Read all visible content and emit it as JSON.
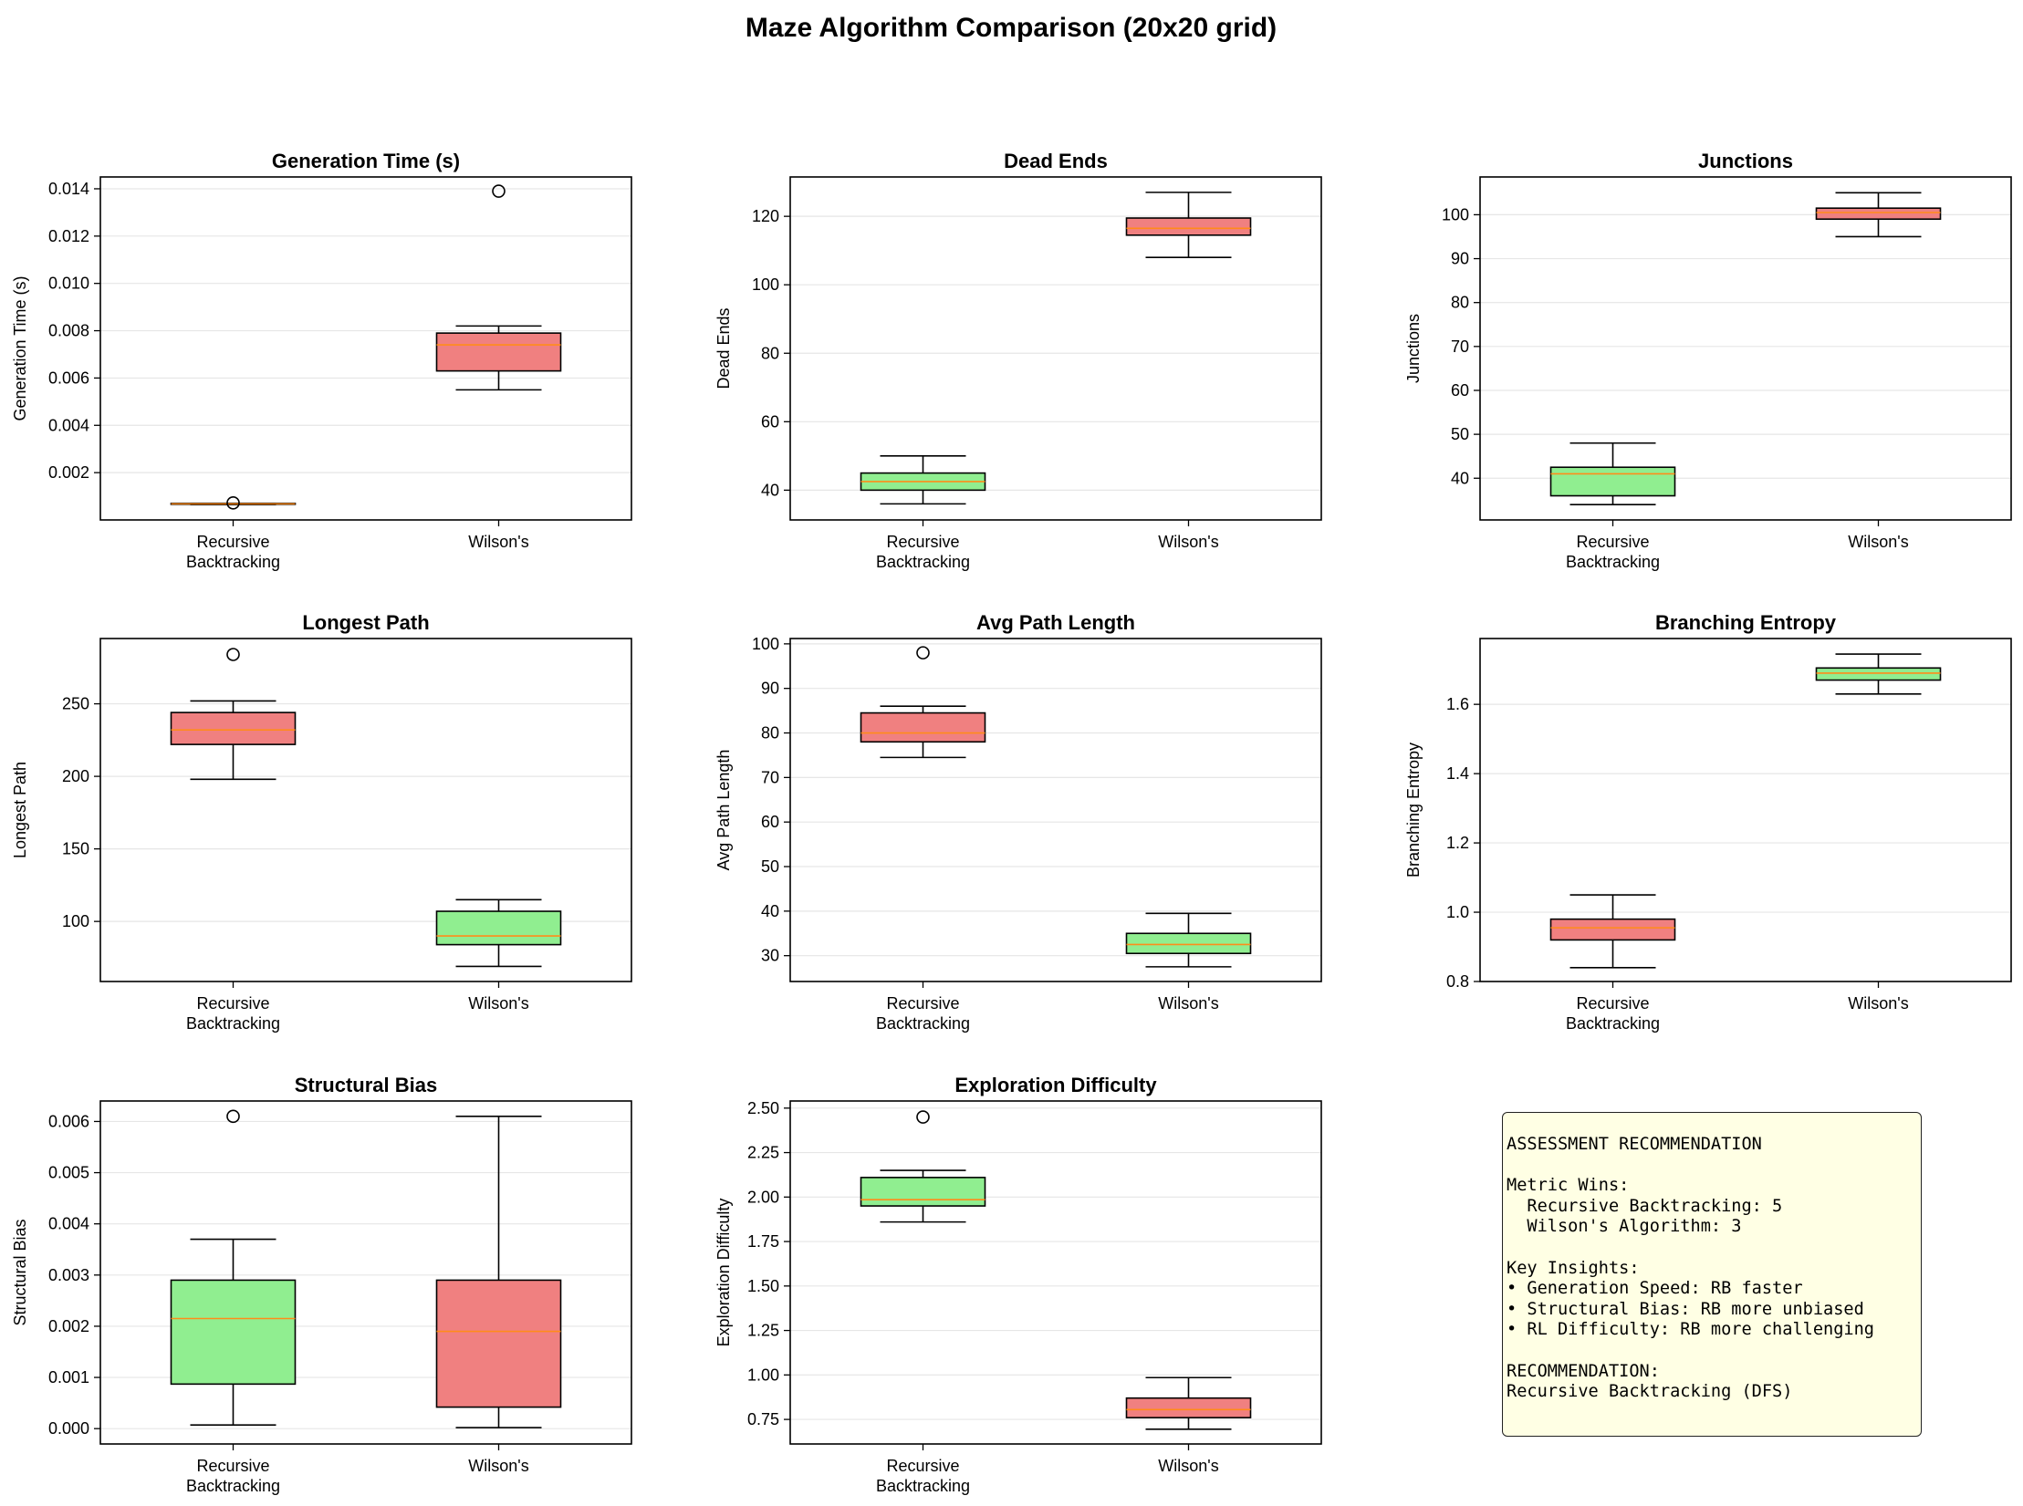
{
  "title": "Maze Algorithm Comparison (20x20 grid)",
  "colors": {
    "better": "#90ee90",
    "worse": "#f08080",
    "median": "#ff8c1a"
  },
  "chart_data": [
    {
      "type": "box",
      "title": "Generation Time (s)",
      "ylabel": "Generation Time (s)",
      "ylim": [
        0.0,
        0.0145
      ],
      "yticks": [
        0.002,
        0.004,
        0.006,
        0.008,
        0.01,
        0.012,
        0.014
      ],
      "ytick_decimals": 3,
      "categories": [
        "Recursive\nBacktracking",
        "Wilson's"
      ],
      "boxes": [
        {
          "name": "Recursive Backtracking",
          "min": 0.00065,
          "q1": 0.00066,
          "median": 0.00068,
          "q3": 0.0007,
          "max": 0.0007,
          "fliers": [
            0.00072
          ],
          "color": "#90ee90"
        },
        {
          "name": "Wilson's",
          "min": 0.0055,
          "q1": 0.0063,
          "median": 0.0074,
          "q3": 0.0079,
          "max": 0.0082,
          "fliers": [
            0.0139
          ],
          "color": "#f08080"
        }
      ]
    },
    {
      "type": "box",
      "title": "Dead Ends",
      "ylabel": "Dead Ends",
      "ylim": [
        31.3,
        131.5
      ],
      "yticks": [
        40,
        60,
        80,
        100,
        120
      ],
      "ytick_decimals": 0,
      "categories": [
        "Recursive\nBacktracking",
        "Wilson's"
      ],
      "boxes": [
        {
          "name": "Recursive Backtracking",
          "min": 36,
          "q1": 40,
          "median": 42.5,
          "q3": 45,
          "max": 50,
          "fliers": [],
          "color": "#90ee90"
        },
        {
          "name": "Wilson's",
          "min": 108,
          "q1": 114.5,
          "median": 116.5,
          "q3": 119.5,
          "max": 127,
          "fliers": [],
          "color": "#f08080"
        }
      ]
    },
    {
      "type": "box",
      "title": "Junctions",
      "ylabel": "Junctions",
      "ylim": [
        30.5,
        108.6
      ],
      "yticks": [
        40,
        50,
        60,
        70,
        80,
        90,
        100
      ],
      "ytick_decimals": 0,
      "categories": [
        "Recursive\nBacktracking",
        "Wilson's"
      ],
      "boxes": [
        {
          "name": "Recursive Backtracking",
          "min": 34,
          "q1": 36,
          "median": 41,
          "q3": 42.5,
          "max": 48,
          "fliers": [],
          "color": "#90ee90"
        },
        {
          "name": "Wilson's",
          "min": 95,
          "q1": 99,
          "median": 100.5,
          "q3": 101.5,
          "max": 105,
          "fliers": [],
          "color": "#f08080"
        }
      ]
    },
    {
      "type": "box",
      "title": "Longest Path",
      "ylabel": "Longest Path",
      "ylim": [
        58.6,
        295
      ],
      "yticks": [
        100,
        150,
        200,
        250
      ],
      "ytick_decimals": 0,
      "categories": [
        "Recursive\nBacktracking",
        "Wilson's"
      ],
      "boxes": [
        {
          "name": "Recursive Backtracking",
          "min": 198,
          "q1": 222,
          "median": 232,
          "q3": 244,
          "max": 252,
          "fliers": [
            284
          ],
          "color": "#f08080"
        },
        {
          "name": "Wilson's",
          "min": 69,
          "q1": 84,
          "median": 90,
          "q3": 107,
          "max": 115,
          "fliers": [],
          "color": "#90ee90"
        }
      ]
    },
    {
      "type": "box",
      "title": "Avg Path Length",
      "ylabel": "Avg Path Length",
      "ylim": [
        24.2,
        101.2
      ],
      "yticks": [
        30,
        40,
        50,
        60,
        70,
        80,
        90,
        100
      ],
      "ytick_decimals": 0,
      "categories": [
        "Recursive\nBacktracking",
        "Wilson's"
      ],
      "boxes": [
        {
          "name": "Recursive Backtracking",
          "min": 74.5,
          "q1": 78,
          "median": 80,
          "q3": 84.5,
          "max": 86,
          "fliers": [
            98
          ],
          "color": "#f08080"
        },
        {
          "name": "Wilson's",
          "min": 27.5,
          "q1": 30.5,
          "median": 32.5,
          "q3": 35,
          "max": 39.5,
          "fliers": [],
          "color": "#90ee90"
        }
      ]
    },
    {
      "type": "box",
      "title": "Branching Entropy",
      "ylabel": "Branching Entropy",
      "ylim": [
        0.8,
        1.79
      ],
      "yticks": [
        0.8,
        1.0,
        1.2,
        1.4,
        1.6
      ],
      "ytick_decimals": 1,
      "categories": [
        "Recursive\nBacktracking",
        "Wilson's"
      ],
      "boxes": [
        {
          "name": "Recursive Backtracking",
          "min": 0.84,
          "q1": 0.92,
          "median": 0.955,
          "q3": 0.98,
          "max": 1.05,
          "fliers": [],
          "color": "#f08080"
        },
        {
          "name": "Wilson's",
          "min": 1.63,
          "q1": 1.67,
          "median": 1.69,
          "q3": 1.705,
          "max": 1.745,
          "fliers": [],
          "color": "#90ee90"
        }
      ]
    },
    {
      "type": "box",
      "title": "Structural Bias",
      "ylabel": "Structural Bias",
      "ylim": [
        -0.0003,
        0.0064
      ],
      "yticks": [
        0.0,
        0.001,
        0.002,
        0.003,
        0.004,
        0.005,
        0.006
      ],
      "ytick_decimals": 3,
      "categories": [
        "Recursive\nBacktracking",
        "Wilson's"
      ],
      "boxes": [
        {
          "name": "Recursive Backtracking",
          "min": 7e-05,
          "q1": 0.00087,
          "median": 0.00215,
          "q3": 0.0029,
          "max": 0.0037,
          "fliers": [
            0.0061
          ],
          "color": "#90ee90"
        },
        {
          "name": "Wilson's",
          "min": 2e-05,
          "q1": 0.00042,
          "median": 0.0019,
          "q3": 0.0029,
          "max": 0.0061,
          "fliers": [],
          "color": "#f08080"
        }
      ]
    },
    {
      "type": "box",
      "title": "Exploration Difficulty",
      "ylabel": "Exploration Difficulty",
      "ylim": [
        0.612,
        2.54
      ],
      "yticks": [
        0.75,
        1.0,
        1.25,
        1.5,
        1.75,
        2.0,
        2.25,
        2.5
      ],
      "ytick_decimals": 2,
      "categories": [
        "Recursive\nBacktracking",
        "Wilson's"
      ],
      "boxes": [
        {
          "name": "Recursive Backtracking",
          "min": 1.86,
          "q1": 1.95,
          "median": 1.985,
          "q3": 2.11,
          "max": 2.15,
          "fliers": [
            2.45
          ],
          "color": "#90ee90"
        },
        {
          "name": "Wilson's",
          "min": 0.695,
          "q1": 0.76,
          "median": 0.805,
          "q3": 0.87,
          "max": 0.985,
          "fliers": [],
          "color": "#f08080"
        }
      ]
    }
  ],
  "recommendation_lines": [
    "ASSESSMENT RECOMMENDATION",
    "",
    "Metric Wins:",
    "  Recursive Backtracking: 5",
    "  Wilson's Algorithm: 3",
    "",
    "Key Insights:",
    "• Generation Speed: RB faster",
    "• Structural Bias: RB more unbiased",
    "• RL Difficulty: RB more challenging",
    "",
    "RECOMMENDATION:",
    "Recursive Backtracking (DFS)"
  ]
}
